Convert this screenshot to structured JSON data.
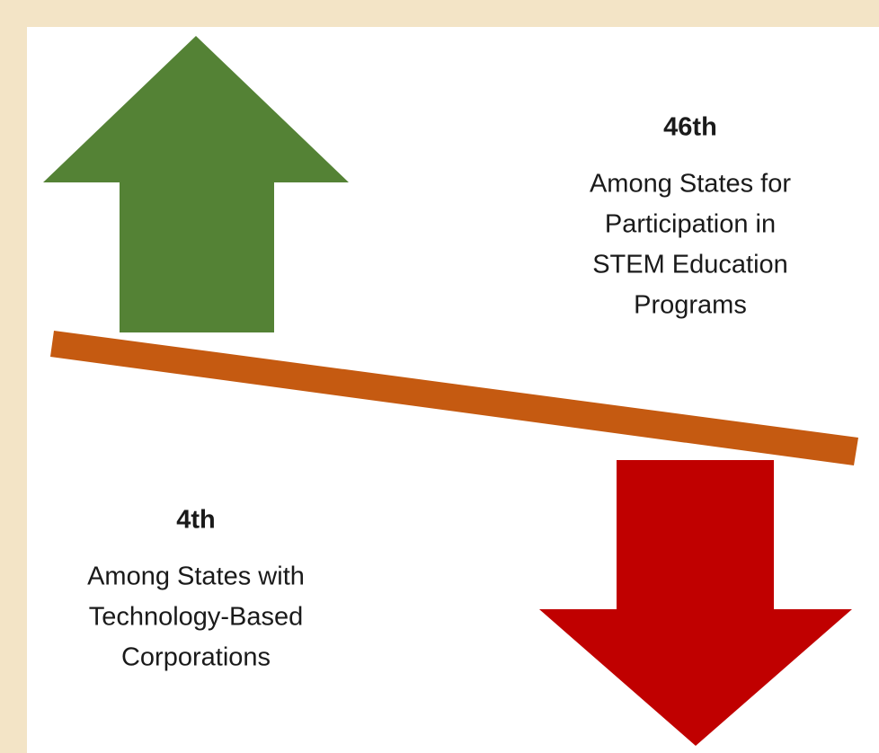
{
  "top": {
    "rank": "46th",
    "description": [
      "Among States for",
      "Participation in",
      "STEM Education",
      "Programs"
    ]
  },
  "bottom": {
    "rank": "4th",
    "description": [
      "Among States with",
      "Technology-Based",
      "Corporations"
    ]
  }
}
